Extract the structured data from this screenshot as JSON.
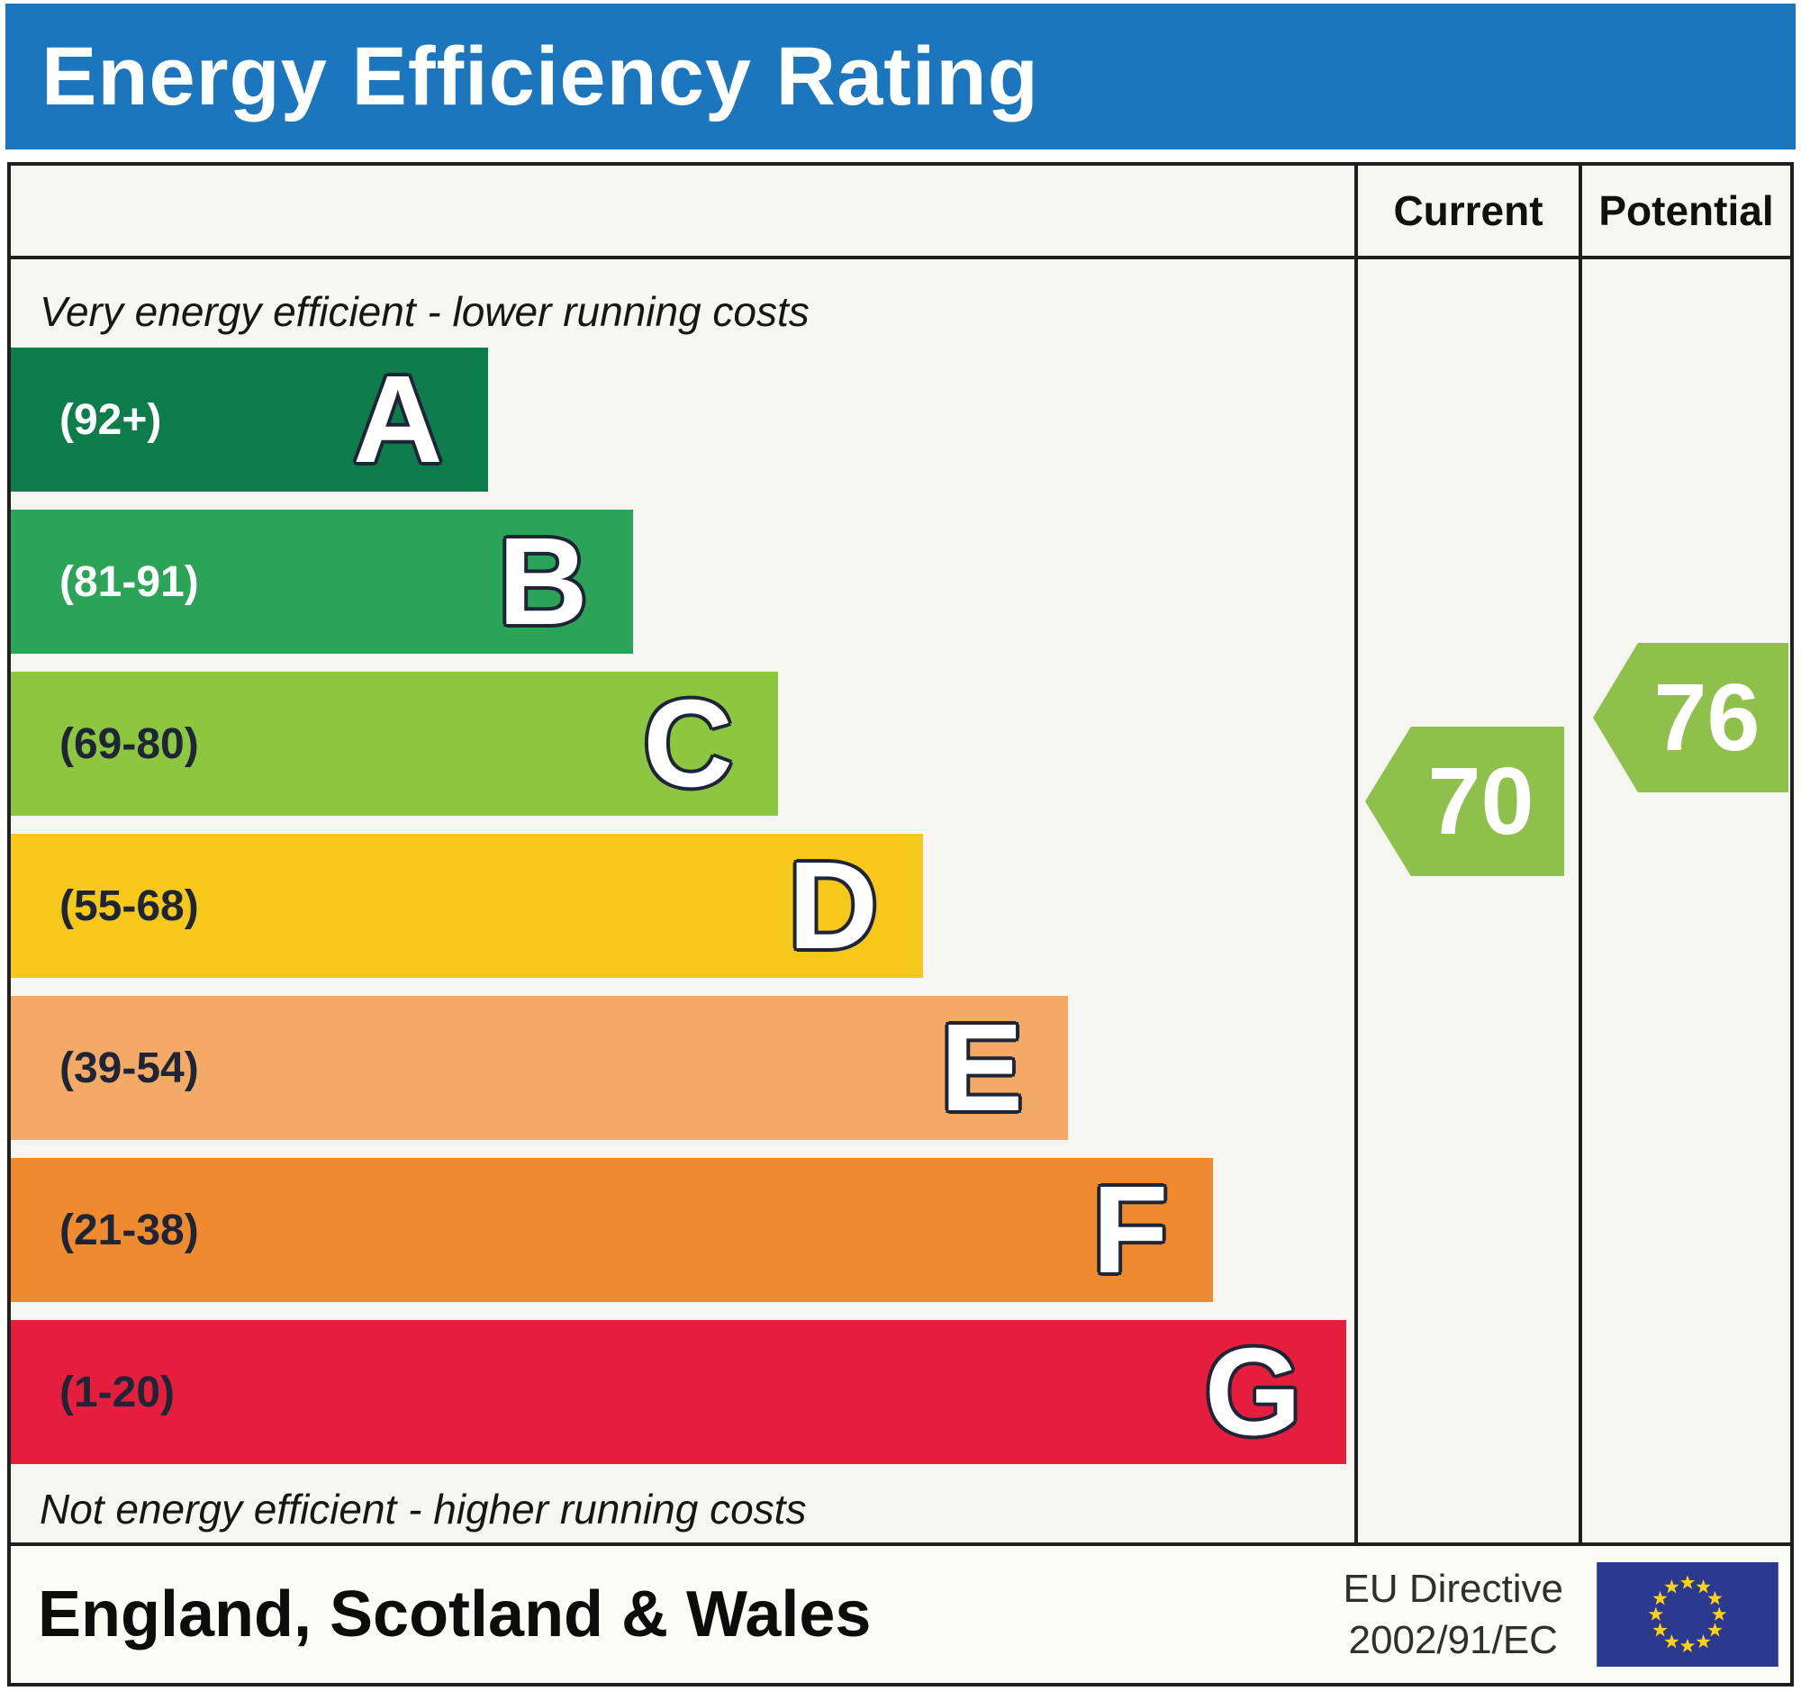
{
  "header": {
    "title": "Energy Efficiency Rating"
  },
  "table": {
    "current_label": "Current",
    "potential_label": "Potential",
    "top_caption": "Very energy efficient - lower running costs",
    "bottom_caption": "Not energy efficient - higher running costs"
  },
  "bands": [
    {
      "letter": "A",
      "range": "(92+)",
      "color": "#0e7d4b",
      "range_color": "#ffffff",
      "width_pct": 35.5
    },
    {
      "letter": "B",
      "range": "(81-91)",
      "color": "#2ba457",
      "range_color": "#ffffff",
      "width_pct": 46.3
    },
    {
      "letter": "C",
      "range": "(69-80)",
      "color": "#8dc63f",
      "range_color": "#1e2537",
      "width_pct": 57.1
    },
    {
      "letter": "D",
      "range": "(55-68)",
      "color": "#f5c81a",
      "range_color": "#1e2537",
      "width_pct": 67.9
    },
    {
      "letter": "E",
      "range": "(39-54)",
      "color": "#f3aa66",
      "range_color": "#1e2537",
      "width_pct": 78.7
    },
    {
      "letter": "F",
      "range": "(21-38)",
      "color": "#ef8a2f",
      "range_color": "#1e2537",
      "width_pct": 89.5
    },
    {
      "letter": "G",
      "range": "(1-20)",
      "color": "#e51e3d",
      "range_color": "#1e2537",
      "width_pct": 99.4
    }
  ],
  "ratings": {
    "current": {
      "value": "70",
      "color": "#8ec04b",
      "band": "C"
    },
    "potential": {
      "value": "76",
      "color": "#8ec04b",
      "band": "C"
    }
  },
  "footer": {
    "region": "England, Scotland & Wales",
    "directive_line1": "EU Directive",
    "directive_line2": "2002/91/EC",
    "flag_icon": "eu-flag",
    "flag_blue": "#2b3a8f",
    "flag_star_color": "#fdd116"
  },
  "colors": {
    "title_bg": "#1b76bd",
    "border": "#1f1f1f",
    "panel_bg": "#f5f5f1"
  },
  "chart_data": {
    "type": "bar",
    "title": "Energy Efficiency Rating",
    "categories": [
      "A",
      "B",
      "C",
      "D",
      "E",
      "F",
      "G"
    ],
    "band_ranges": [
      "92+",
      "81-91",
      "69-80",
      "55-68",
      "39-54",
      "21-38",
      "1-20"
    ],
    "band_colors": [
      "#0e7d4b",
      "#2ba457",
      "#8dc63f",
      "#f5c81a",
      "#f3aa66",
      "#ef8a2f",
      "#e51e3d"
    ],
    "bar_width_pct": [
      35.5,
      46.3,
      57.1,
      67.9,
      78.7,
      89.5,
      99.4
    ],
    "current": 70,
    "potential": 76,
    "current_band": "C",
    "potential_band": "C",
    "xlim": [
      1,
      100
    ],
    "region": "England, Scotland & Wales",
    "directive": "EU Directive 2002/91/EC",
    "top_annotation": "Very energy efficient - lower running costs",
    "bottom_annotation": "Not energy efficient - higher running costs"
  }
}
